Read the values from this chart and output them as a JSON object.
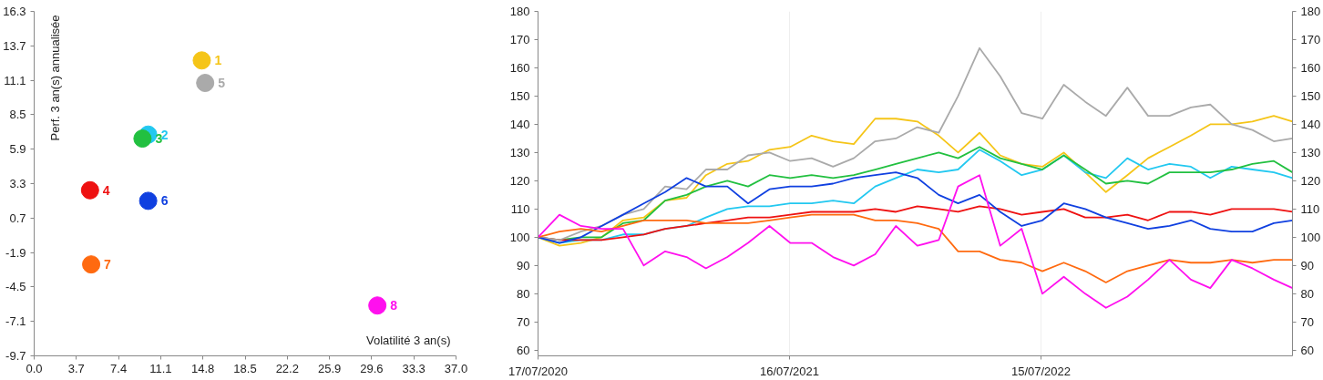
{
  "chart_data": [
    {
      "type": "scatter",
      "xlabel": "Volatilité 3 an(s)",
      "ylabel": "Perf. 3 an(s) annualisée",
      "marker": "circle",
      "grid": false,
      "xlim": [
        0,
        37
      ],
      "xticks": [
        {
          "value": 0,
          "label": "0.0"
        },
        3.7,
        7.4,
        11.1,
        14.8,
        18.5,
        22.2,
        25.9,
        29.6,
        33.3,
        {
          "value": 37,
          "label": "37.0"
        }
      ],
      "ylim": [
        -9.7,
        16.3
      ],
      "yticks": [
        -9.7,
        -7.1,
        -4.5,
        -1.9,
        0.7,
        3.3,
        5.9,
        8.5,
        11.1,
        13.7,
        16.3
      ],
      "series": [
        {
          "name": "1",
          "color": "#f5c518",
          "x": [
            14.7
          ],
          "values": [
            12.6
          ]
        },
        {
          "name": "2",
          "color": "#22c8f0",
          "x": [
            10.0
          ],
          "values": [
            7.0
          ]
        },
        {
          "name": "3",
          "color": "#22c040",
          "x": [
            9.5
          ],
          "values": [
            6.7
          ]
        },
        {
          "name": "4",
          "color": "#ee1111",
          "x": [
            4.9
          ],
          "values": [
            2.8
          ]
        },
        {
          "name": "5",
          "color": "#aaaaaa",
          "x": [
            15.0
          ],
          "values": [
            10.9
          ]
        },
        {
          "name": "6",
          "color": "#1040e0",
          "x": [
            10.0
          ],
          "values": [
            2.0
          ]
        },
        {
          "name": "7",
          "color": "#ff6a10",
          "x": [
            5.0
          ],
          "values": [
            -2.8
          ]
        },
        {
          "name": "8",
          "color": "#ff10ee",
          "x": [
            30.1
          ],
          "values": [
            -5.9
          ]
        }
      ]
    },
    {
      "type": "line",
      "grid": "x",
      "line_style": "solid",
      "x": [
        "2020-07-17",
        "2020-08-17",
        "2020-09-17",
        "2020-10-17",
        "2020-11-17",
        "2020-12-17",
        "2021-01-17",
        "2021-02-17",
        "2021-03-17",
        "2021-04-17",
        "2021-05-17",
        "2021-06-17",
        "2021-07-17",
        "2021-08-17",
        "2021-09-17",
        "2021-10-17",
        "2021-11-17",
        "2021-12-17",
        "2022-01-17",
        "2022-02-17",
        "2022-03-17",
        "2022-04-17",
        "2022-05-17",
        "2022-06-17",
        "2022-07-17",
        "2022-08-17",
        "2022-09-17",
        "2022-10-17",
        "2022-11-17",
        "2022-12-17",
        "2023-01-17",
        "2023-02-17",
        "2023-03-17",
        "2023-04-17",
        "2023-05-17",
        "2023-06-17",
        "2023-07-14"
      ],
      "xlim": [
        "2020-07-17",
        "2023-07-14"
      ],
      "xticks": [
        {
          "value": "2020-07-17",
          "label": "17/07/2020"
        },
        {
          "value": "2021-07-16",
          "label": "16/07/2021"
        },
        {
          "value": "2022-07-15",
          "label": "15/07/2022"
        }
      ],
      "ylim": [
        58,
        180
      ],
      "yticks": [
        60,
        70,
        80,
        90,
        100,
        110,
        120,
        130,
        140,
        150,
        160,
        170,
        180
      ],
      "y2lim": [
        58,
        180
      ],
      "y2ticks": [
        60,
        70,
        80,
        90,
        100,
        110,
        120,
        130,
        140,
        150,
        160,
        170,
        180
      ],
      "series": [
        {
          "color": "#f5c518",
          "values": [
            100,
            97,
            98,
            100,
            106,
            107,
            113,
            114,
            122,
            126,
            127,
            131,
            132,
            136,
            134,
            133,
            142,
            142,
            141,
            136,
            130,
            137,
            129,
            126,
            125,
            130,
            123,
            116,
            122,
            128,
            132,
            136,
            140,
            140,
            141,
            143,
            141
          ]
        },
        {
          "color": "#22c8f0",
          "values": [
            100,
            98,
            99,
            99,
            101,
            101,
            103,
            104,
            107,
            110,
            111,
            111,
            112,
            112,
            113,
            112,
            118,
            121,
            124,
            123,
            124,
            131,
            127,
            122,
            124,
            129,
            123,
            121,
            128,
            124,
            126,
            125,
            121,
            125,
            124,
            123,
            121
          ]
        },
        {
          "color": "#22c040",
          "values": [
            100,
            99,
            100,
            100,
            105,
            106,
            113,
            115,
            118,
            120,
            118,
            122,
            121,
            122,
            121,
            122,
            124,
            126,
            128,
            130,
            128,
            132,
            128,
            126,
            124,
            129,
            124,
            119,
            120,
            119,
            123,
            123,
            123,
            124,
            126,
            127,
            123
          ]
        },
        {
          "color": "#ee1111",
          "values": [
            100,
            99,
            99,
            99,
            100,
            101,
            103,
            104,
            105,
            106,
            107,
            107,
            108,
            109,
            109,
            109,
            110,
            109,
            111,
            110,
            109,
            111,
            110,
            108,
            109,
            110,
            107,
            107,
            108,
            106,
            109,
            109,
            108,
            110,
            110,
            110,
            109
          ]
        },
        {
          "color": "#aaaaaa",
          "values": [
            100,
            99,
            102,
            104,
            108,
            110,
            118,
            117,
            124,
            124,
            129,
            130,
            127,
            128,
            125,
            128,
            134,
            135,
            139,
            137,
            150,
            167,
            157,
            144,
            142,
            154,
            148,
            143,
            153,
            143,
            143,
            146,
            147,
            140,
            138,
            134,
            135
          ]
        },
        {
          "color": "#1040e0",
          "values": [
            100,
            98,
            100,
            104,
            108,
            112,
            116,
            121,
            118,
            118,
            112,
            117,
            118,
            118,
            119,
            121,
            122,
            123,
            121,
            115,
            112,
            115,
            109,
            104,
            106,
            112,
            110,
            107,
            105,
            103,
            104,
            106,
            103,
            102,
            102,
            105,
            106
          ]
        },
        {
          "color": "#ff6a10",
          "values": [
            100,
            102,
            103,
            102,
            104,
            106,
            106,
            106,
            105,
            105,
            105,
            106,
            107,
            108,
            108,
            108,
            106,
            106,
            105,
            103,
            95,
            95,
            92,
            91,
            88,
            91,
            88,
            84,
            88,
            90,
            92,
            91,
            91,
            92,
            91,
            92,
            92
          ]
        },
        {
          "color": "#ff10ee",
          "values": [
            100,
            108,
            104,
            103,
            103,
            90,
            95,
            93,
            89,
            93,
            98,
            104,
            98,
            98,
            93,
            90,
            94,
            104,
            97,
            99,
            118,
            122,
            97,
            103,
            80,
            86,
            80,
            75,
            79,
            85,
            92,
            85,
            82,
            92,
            89,
            85,
            82
          ]
        }
      ]
    }
  ]
}
